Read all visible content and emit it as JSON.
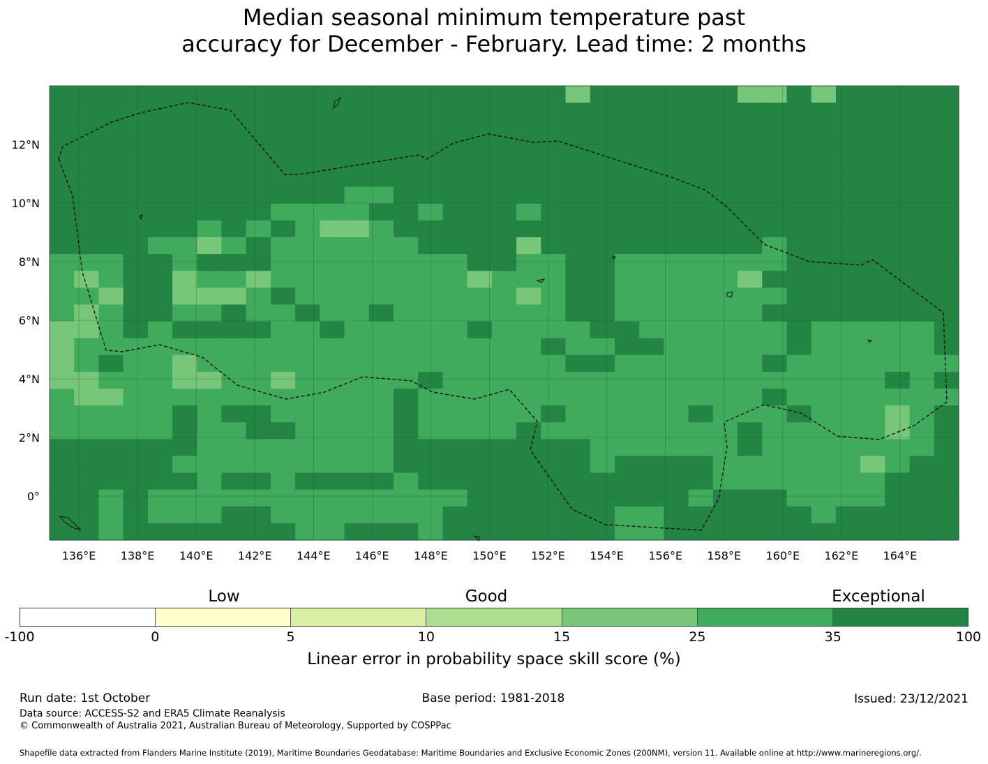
{
  "title": {
    "line1": "Median seasonal minimum temperature past",
    "line2": "accuracy for December - February. Lead time: 2 months"
  },
  "chart_data": {
    "type": "heatmap",
    "title": "Median seasonal minimum temperature past accuracy for December - February. Lead time: 2 months",
    "x_axis": {
      "range": [
        135,
        166
      ],
      "ticks": [
        "136°E",
        "138°E",
        "140°E",
        "142°E",
        "144°E",
        "146°E",
        "148°E",
        "150°E",
        "152°E",
        "154°E",
        "156°E",
        "158°E",
        "160°E",
        "162°E",
        "164°E"
      ]
    },
    "y_axis": {
      "range": [
        -1.5,
        14
      ],
      "ticks": [
        "12°N",
        "10°N",
        "8°N",
        "6°N",
        "4°N",
        "2°N",
        "0°"
      ]
    },
    "grid_resolution_deg": 0.833,
    "colorbar": {
      "label": "Linear error in probability space skill score (%)",
      "bins": [
        "-100",
        "0",
        "5",
        "10",
        "15",
        "25",
        "35",
        "100"
      ],
      "colors": [
        "#ffffff",
        "#ffffcc",
        "#d9f0a3",
        "#addd8e",
        "#78c679",
        "#41ab5d",
        "#238443"
      ],
      "categories": [
        "Low",
        "Good",
        "Exceptional"
      ]
    },
    "value_classes": {
      "D": "35 to 100",
      "M": "25 to 35",
      "L": "15 to 25",
      "P": "10 to 15"
    },
    "grid_rows_north_to_south": [
      "DDDDDDDDDDDDDDDDDDDDDLDDDDDDLLDLDDDDD",
      "DDDDDDDDDDDDDDDDDDDDDDDDDDDDDDDDDDDDD",
      "DDDDDDDDDDDDDDDDDDDDDDDDDDDDDDDDDDDDD",
      "DDDDDDDDDDDDDDDDDDDDDDDDDDDDDDDDDDDDD",
      "DDDDDDDDDDDDDDDDDDDDDDDDDDDDDDDDDDDDD",
      "DDDDDDDDDDDDDDDDDDDDDDDDDDDDDDDDDDDDD",
      "DDDDDDDDDDDDMMDDDDDDDDDDDDDDDDDDDDDDD",
      "DDDDDDDDDMMMMDDMDDDMDDDDDDDDDDDDDDDDD",
      "DDDDDDMDMDMLLMDDDDDDDDDDDDDDDDDDDDDDD",
      "DDDDMMLMDMMMMMMDDDDLDDDDDDDDDMDDDDDDD",
      "MMMDDMDDDMMMMMMMMDDMMDDMMMMMMMDDDDDDD",
      "MLMDDLMMLMMMMMMMMLMMMDDMMMMMLDDDDDDDD",
      "MMLDDLLLMDMMMMMMMMMLMDDMMMMMMMDDDDDDD",
      "MLMDDMMDMMDMMDMMMMMMMDDMMMMMMDDDDDDDD",
      "LLMDMDDDDMMDMMMMMDMMMMDDMMMMMMDMMMMMD",
      "LMMMMMMMMMMMMMMMMMMMDMMDDMMMMMDMMMMMD",
      "LMDMMLMMMMMMMMMMMMMMMDDMMMMMMDMMMMMMM",
      "LLMMMLLMMLMMMMMDMMMMMMMMMMMMMMMMMMDMD",
      "MLLMMMMMMMMMMMDMMMMMMMMMMMMMMDMMMMMMM",
      "MMMMMDMDDMMMMMDMMMMMDMMMMMDMMMDMMMLMD",
      "MMMMMDMMDDMMMMDMMMMDMMMMMMMMDMMMMMLMD",
      "DDDDDDMMMMMMMMDDDDDDDDMMMMMMDMMMMMMMD",
      "DDDDDMMMMMMMMMDDDDDDDDMDDDDMMMMMMLMDD",
      "DDDDDDMDDMDDDDMDDDDDDDDDDDDMMMMMMMDDD",
      "DDMDMMMMMMMMMMMMMDDDDDDDDDMDDDMMMMDDD",
      "DDMDMMMDDMMMMMMMDDDDDDDMMDDDDDDMDDDDD",
      "DDMDDDDDDDMMDDDMDDDDDDDMMDDDDDDDDDDDD"
    ]
  },
  "colorbar": {
    "category_low": "Low",
    "category_good": "Good",
    "category_exceptional": "Exceptional",
    "ticks": [
      "-100",
      "0",
      "5",
      "10",
      "15",
      "25",
      "35",
      "100"
    ],
    "axis_label": "Linear error in probability space skill score (%)"
  },
  "footer": {
    "run_date": "Run date: 1st October",
    "base_period": "Base period: 1981-2018",
    "issued": "Issued: 23/12/2021",
    "data_source": "Data source: ACCESS-S2 and ERA5 Climate Reanalysis",
    "copyright": "© Commonwealth of Australia 2021, Australian Bureau of Meteorology, Supported by COSPPac",
    "shapefile": "Shapefile data extracted from Flanders Marine Institute (2019), Maritime Boundaries Geodatabase: Maritime Boundaries and Exclusive Economic Zones (200NM), version 11. Available online at http://www.marineregions.org/."
  }
}
